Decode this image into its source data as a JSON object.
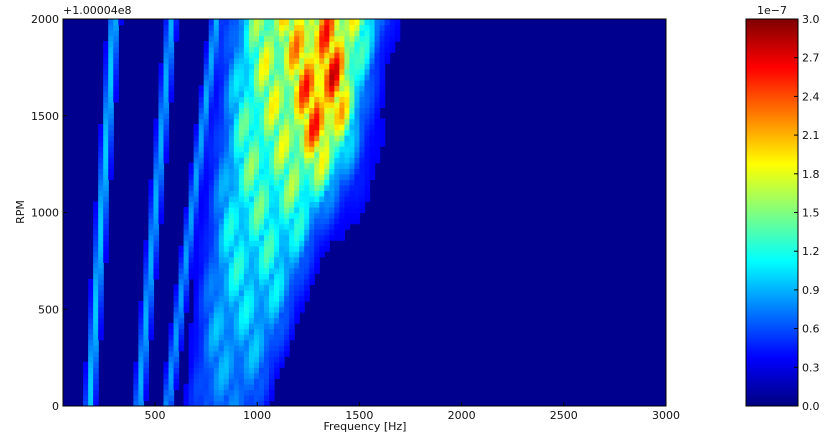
{
  "chart_data": [
    {
      "type": "heatmap",
      "title": "",
      "offset_label": "+1.00004e8",
      "xlabel": "Frequency [Hz]",
      "ylabel": "RPM",
      "xlim": [
        50,
        3000
      ],
      "ylim": [
        0,
        2000
      ],
      "x_ticks": [
        500,
        1000,
        1500,
        2000,
        2500,
        3000
      ],
      "y_ticks": [
        0,
        500,
        1000,
        1500,
        2000
      ],
      "colormap": "jet",
      "background_color": "#00008f",
      "features": [
        {
          "kind": "order-line",
          "x_at_ymin": 180,
          "x_at_ymax": 300,
          "intensity": 0.25
        },
        {
          "kind": "order-line",
          "x_at_ymin": 420,
          "x_at_ymax": 580,
          "intensity": 0.22
        },
        {
          "kind": "order-line",
          "x_at_ymin": 560,
          "x_at_ymax": 800,
          "intensity": 0.2
        },
        {
          "kind": "energy-band",
          "x_center_at_ymin": 850,
          "x_center_at_ymax": 1250,
          "width": 650,
          "peak_x": 1350,
          "peak_y": 1550,
          "peak_intensity": 3.0
        }
      ]
    },
    {
      "type": "colorbar",
      "multiplier_label": "1e−7",
      "vmin": 0.0,
      "vmax": 3.0,
      "ticks": [
        "0.0",
        "0.3",
        "0.6",
        "0.9",
        "1.2",
        "1.5",
        "1.8",
        "2.1",
        "2.4",
        "2.7",
        "3.0"
      ],
      "tick_values": [
        0.0,
        0.3,
        0.6,
        0.9,
        1.2,
        1.5,
        1.8,
        2.1,
        2.4,
        2.7,
        3.0
      ],
      "colors": [
        "#00007f",
        "#0000ff",
        "#007fff",
        "#00ffff",
        "#7fff7f",
        "#ffff00",
        "#ff7f00",
        "#ff0000",
        "#7f0000"
      ]
    }
  ]
}
